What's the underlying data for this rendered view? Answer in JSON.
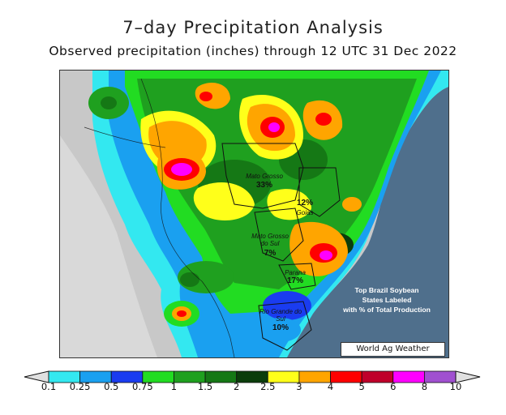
{
  "title": "7–day Precipitation Analysis",
  "subtitle": "Observed precipitation (inches) through 12 UTC 31 Dec 2022",
  "note_lines": [
    "Top Brazil Soybean",
    "States Labeled",
    "with % of Total Production"
  ],
  "credit": "World Ag Weather",
  "states": [
    {
      "name": "Mato Grosso",
      "pct": "33%"
    },
    {
      "name": "Goias",
      "pct": "12%"
    },
    {
      "name": "Mato Grosso do Sul",
      "pct": "7%"
    },
    {
      "name": "Parana",
      "pct": "17%"
    },
    {
      "name": "Rio Grande do Sul",
      "pct": "10%"
    }
  ],
  "legend": {
    "labels": [
      "0.1",
      "0.25",
      "0.5",
      "0.75",
      "1",
      "1.5",
      "2",
      "2.5",
      "3",
      "4",
      "5",
      "6",
      "8",
      "10"
    ],
    "colors": [
      "#e0e0e0",
      "#33e8f0",
      "#1aa0f0",
      "#1a3cf0",
      "#22dc22",
      "#1fa01f",
      "#157815",
      "#0b3d0b",
      "#ffff1a",
      "#ffa500",
      "#ff0000",
      "#c0002a",
      "#ff00ff",
      "#a050d0",
      "#e0e0e0"
    ]
  }
}
